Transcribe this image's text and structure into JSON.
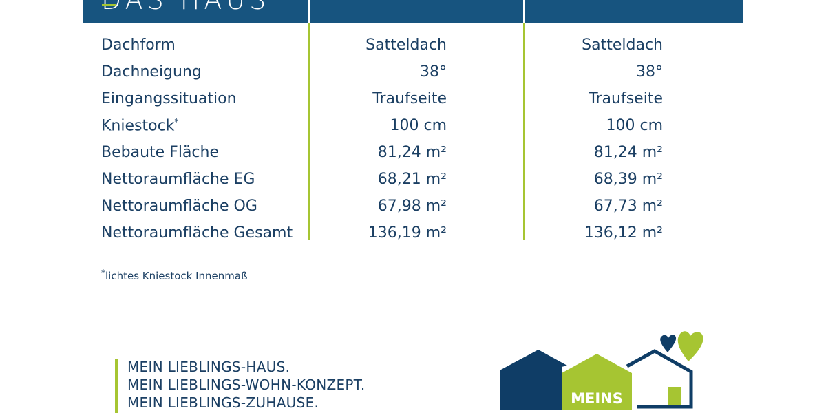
{
  "header": {
    "title": "DAS HAUS"
  },
  "rows": [
    {
      "label": "Dachform",
      "v1": "Satteldach",
      "v2": "Satteldach"
    },
    {
      "label": "Dachneigung",
      "v1": "38°",
      "v2": "38°"
    },
    {
      "label": "Eingangssituation",
      "v1": "Traufseite",
      "v2": "Traufseite"
    },
    {
      "label": "Kniestock",
      "label_sup": "*",
      "v1": "100 cm",
      "v2": "100 cm"
    },
    {
      "label": "Bebaute Fläche",
      "v1": "81,24 m²",
      "v2": "81,24 m²"
    },
    {
      "label": "Nettoraumfläche EG",
      "v1": "68,21 m²",
      "v2": "68,39 m²"
    },
    {
      "label": "Nettoraumfläche OG",
      "v1": "67,98 m²",
      "v2": "67,73 m²"
    },
    {
      "label": "Nettoraumfläche Gesamt",
      "v1": "136,19 m²",
      "v2": "136,12 m²"
    }
  ],
  "footnote": {
    "mark": "*",
    "text": "lichtes Kniestock Innenmaß"
  },
  "slogan": [
    "MEIN LIEBLINGS-HAUS.",
    "MEIN LIEBLINGS-WOHN-KONZEPT.",
    "MEIN LIEBLINGS-ZUHAUSE."
  ],
  "logo": {
    "text": "MEINS"
  },
  "colors": {
    "navy": "#17547f",
    "text": "#1b3f63",
    "green": "#a6c532",
    "logo_navy": "#0f3d66"
  }
}
